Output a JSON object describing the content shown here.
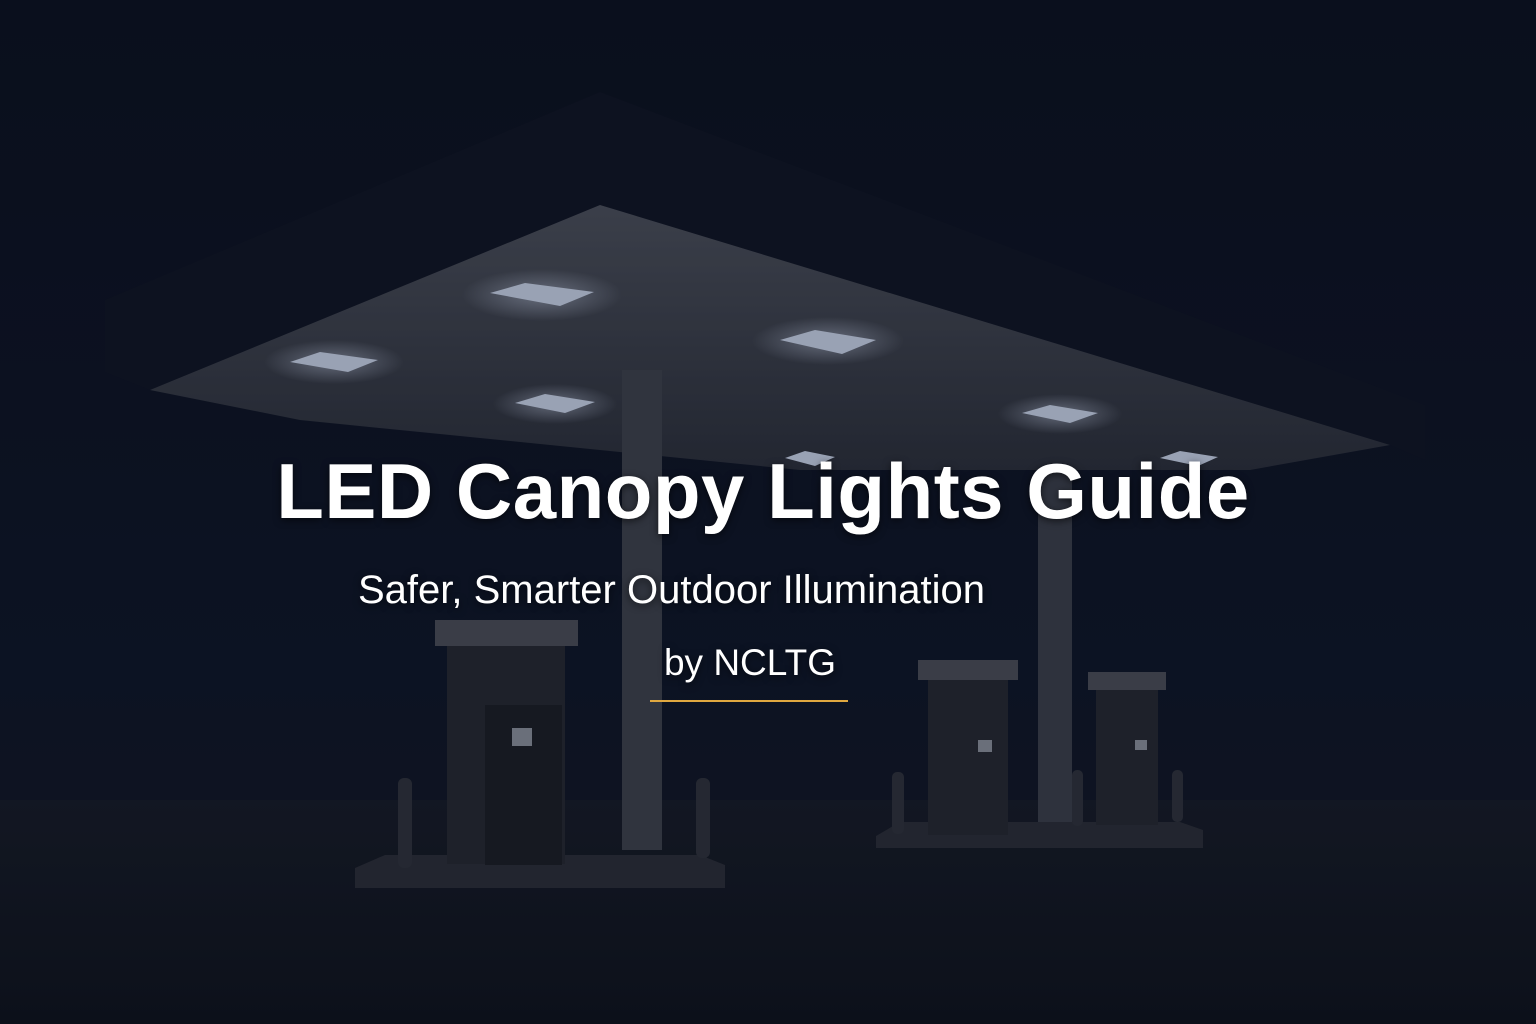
{
  "hero": {
    "title": "LED Canopy Lights Guide",
    "subtitle": "Safer, Smarter Outdoor Illumination",
    "byline": "by NCLTG"
  },
  "colors": {
    "background": "#0b1120",
    "accent_rule": "#e0a840",
    "text": "#ffffff"
  }
}
